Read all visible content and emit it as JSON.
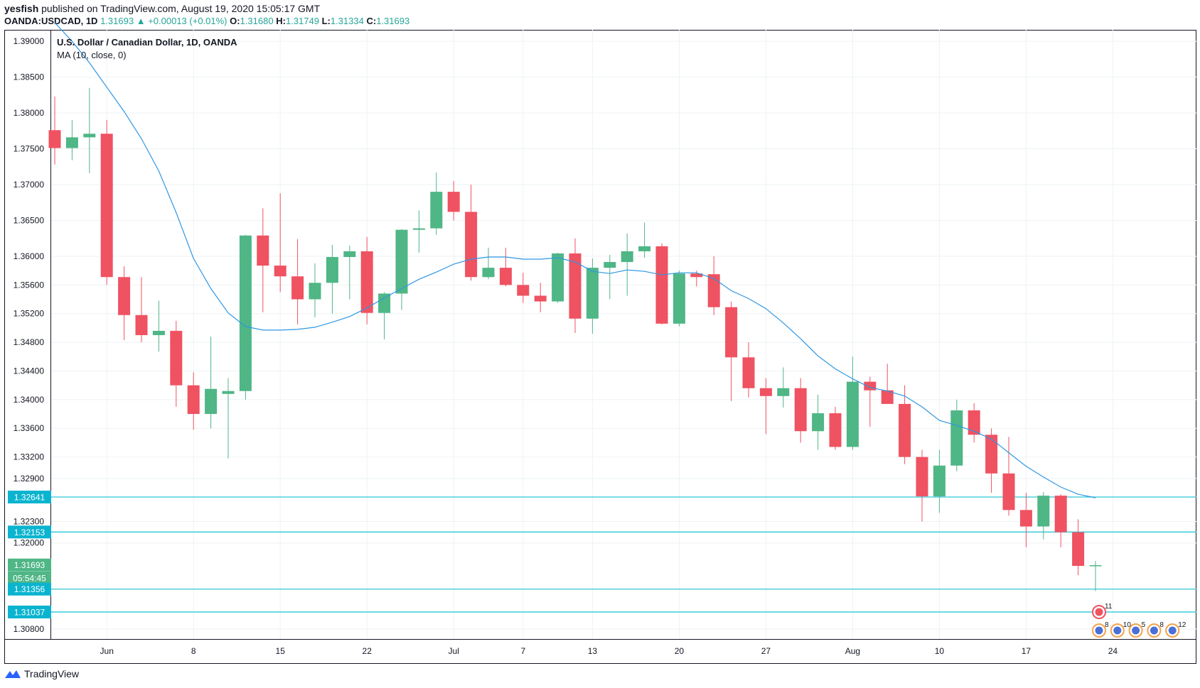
{
  "header": {
    "author": "yesfish",
    "published": "published on TradingView.com, August 19, 2020 15:05:17 GMT",
    "symbol": "OANDA:USDCAD, 1D",
    "last": "1.31693",
    "change": "+0.00013 (+0.01%)",
    "o_label": "O:",
    "o_value": "1.31680",
    "h_label": "H:",
    "h_value": "1.31749",
    "l_label": "L:",
    "l_value": "1.31334",
    "c_label": "C:",
    "c_value": "1.31693"
  },
  "legend": {
    "title": "U.S. Dollar / Canadian Dollar, 1D, OANDA",
    "ma": "MA (10, close, 0)"
  },
  "footer": {
    "brand": "TradingView"
  },
  "colors": {
    "up": "#4fb686",
    "down": "#ef5261",
    "ma": "#2e97e3",
    "hline": "#2ec7d6",
    "grid": "#eef2f5",
    "axis": "#131722",
    "tag": "#0ab4cf",
    "pricetag": "#4fb686"
  },
  "chart_data": {
    "type": "candlestick",
    "title": "U.S. Dollar / Canadian Dollar, 1D, OANDA",
    "ylim": [
      1.3066,
      1.3916
    ],
    "y_ticks": [
      "1.39000",
      "1.38500",
      "1.38000",
      "1.37500",
      "1.37000",
      "1.36500",
      "1.36000",
      "1.35600",
      "1.35200",
      "1.34800",
      "1.34400",
      "1.34000",
      "1.33600",
      "1.33200",
      "1.32900",
      "1.32300",
      "1.32000",
      "1.30800"
    ],
    "x_ticks": [
      {
        "i": 3,
        "label": "Jun"
      },
      {
        "i": 8,
        "label": "8"
      },
      {
        "i": 13,
        "label": "15"
      },
      {
        "i": 18,
        "label": "22"
      },
      {
        "i": 23,
        "label": "Jul"
      },
      {
        "i": 27,
        "label": "7"
      },
      {
        "i": 31,
        "label": "13"
      },
      {
        "i": 36,
        "label": "20"
      },
      {
        "i": 41,
        "label": "27"
      },
      {
        "i": 46,
        "label": "Aug"
      },
      {
        "i": 51,
        "label": "10"
      },
      {
        "i": 56,
        "label": "17"
      },
      {
        "i": 61,
        "label": "24"
      }
    ],
    "candles": [
      [
        1.3776,
        1.3823,
        1.3728,
        1.3751
      ],
      [
        1.3751,
        1.379,
        1.3734,
        1.3766
      ],
      [
        1.3766,
        1.3835,
        1.3716,
        1.3771
      ],
      [
        1.3771,
        1.379,
        1.356,
        1.3571
      ],
      [
        1.3571,
        1.3586,
        1.3483,
        1.3518
      ],
      [
        1.3518,
        1.3571,
        1.348,
        1.349
      ],
      [
        1.349,
        1.3538,
        1.3467,
        1.3496
      ],
      [
        1.3496,
        1.351,
        1.339,
        1.342
      ],
      [
        1.342,
        1.3438,
        1.3358,
        1.338
      ],
      [
        1.338,
        1.3488,
        1.336,
        1.3415
      ],
      [
        1.3408,
        1.343,
        1.3318,
        1.3412
      ],
      [
        1.3412,
        1.363,
        1.34,
        1.3629
      ],
      [
        1.3629,
        1.3667,
        1.3522,
        1.3587
      ],
      [
        1.3587,
        1.3688,
        1.355,
        1.3572
      ],
      [
        1.3572,
        1.3624,
        1.3505,
        1.354
      ],
      [
        1.354,
        1.359,
        1.3515,
        1.3563
      ],
      [
        1.3563,
        1.3616,
        1.352,
        1.3599
      ],
      [
        1.3599,
        1.3615,
        1.354,
        1.3607
      ],
      [
        1.3607,
        1.3627,
        1.3505,
        1.3521
      ],
      [
        1.3521,
        1.355,
        1.3484,
        1.3548
      ],
      [
        1.3548,
        1.3638,
        1.3525,
        1.3637
      ],
      [
        1.3637,
        1.3664,
        1.3605,
        1.3639
      ],
      [
        1.3639,
        1.3717,
        1.363,
        1.369
      ],
      [
        1.369,
        1.3705,
        1.365,
        1.3662
      ],
      [
        1.3662,
        1.37,
        1.3566,
        1.3571
      ],
      [
        1.3571,
        1.3612,
        1.3568,
        1.3584
      ],
      [
        1.3584,
        1.3612,
        1.3558,
        1.356
      ],
      [
        1.356,
        1.3577,
        1.3535,
        1.3545
      ],
      [
        1.3545,
        1.3563,
        1.3522,
        1.3537
      ],
      [
        1.3537,
        1.3605,
        1.3535,
        1.3604
      ],
      [
        1.3604,
        1.3625,
        1.3493,
        1.3513
      ],
      [
        1.3513,
        1.3597,
        1.3492,
        1.3584
      ],
      [
        1.3584,
        1.3602,
        1.354,
        1.3592
      ],
      [
        1.3592,
        1.3632,
        1.3545,
        1.3607
      ],
      [
        1.3607,
        1.3647,
        1.3598,
        1.3614
      ],
      [
        1.3614,
        1.3618,
        1.3505,
        1.3506
      ],
      [
        1.3506,
        1.358,
        1.3502,
        1.3576
      ],
      [
        1.3576,
        1.358,
        1.3558,
        1.3571
      ],
      [
        1.3575,
        1.36,
        1.3518,
        1.3529
      ],
      [
        1.3529,
        1.3537,
        1.3398,
        1.3459
      ],
      [
        1.3459,
        1.348,
        1.3403,
        1.3416
      ],
      [
        1.3416,
        1.343,
        1.3352,
        1.3405
      ],
      [
        1.3405,
        1.3445,
        1.3389,
        1.3416
      ],
      [
        1.3416,
        1.343,
        1.334,
        1.3356
      ],
      [
        1.3356,
        1.3407,
        1.333,
        1.3381
      ],
      [
        1.3381,
        1.339,
        1.333,
        1.3334
      ],
      [
        1.3334,
        1.346,
        1.333,
        1.3425
      ],
      [
        1.3425,
        1.3432,
        1.3362,
        1.3413
      ],
      [
        1.3413,
        1.345,
        1.3398,
        1.3394
      ],
      [
        1.3394,
        1.342,
        1.331,
        1.332
      ],
      [
        1.332,
        1.333,
        1.323,
        1.3265
      ],
      [
        1.3265,
        1.333,
        1.3242,
        1.3308
      ],
      [
        1.3308,
        1.34,
        1.33,
        1.3385
      ],
      [
        1.3385,
        1.3395,
        1.334,
        1.3351
      ],
      [
        1.3351,
        1.336,
        1.327,
        1.3297
      ],
      [
        1.3297,
        1.3348,
        1.3238,
        1.3246
      ],
      [
        1.3246,
        1.327,
        1.3194,
        1.3223
      ],
      [
        1.3223,
        1.3271,
        1.3205,
        1.3266
      ],
      [
        1.3266,
        1.3268,
        1.3194,
        1.3215
      ],
      [
        1.3215,
        1.3233,
        1.3155,
        1.3168
      ],
      [
        1.3168,
        1.3175,
        1.3133,
        1.3169
      ]
    ],
    "ma": [
      [
        0,
        1.3926
      ],
      [
        1,
        1.39
      ],
      [
        2,
        1.387
      ],
      [
        3,
        1.3836
      ],
      [
        4,
        1.3802
      ],
      [
        5,
        1.3764
      ],
      [
        6,
        1.3719
      ],
      [
        7,
        1.3661
      ],
      [
        8,
        1.3597
      ],
      [
        9,
        1.3555
      ],
      [
        10,
        1.3521
      ],
      [
        11,
        1.3502
      ],
      [
        12,
        1.3497
      ],
      [
        13,
        1.3497
      ],
      [
        14,
        1.3498
      ],
      [
        15,
        1.3501
      ],
      [
        16,
        1.3508
      ],
      [
        17,
        1.3516
      ],
      [
        18,
        1.3528
      ],
      [
        19,
        1.3542
      ],
      [
        20,
        1.3555
      ],
      [
        21,
        1.3568
      ],
      [
        22,
        1.3578
      ],
      [
        23,
        1.3589
      ],
      [
        24,
        1.3596
      ],
      [
        25,
        1.3599
      ],
      [
        26,
        1.3599
      ],
      [
        27,
        1.3596
      ],
      [
        28,
        1.3596
      ],
      [
        29,
        1.3598
      ],
      [
        30,
        1.3592
      ],
      [
        31,
        1.3579
      ],
      [
        32,
        1.3576
      ],
      [
        33,
        1.3581
      ],
      [
        34,
        1.3579
      ],
      [
        35,
        1.3574
      ],
      [
        36,
        1.3577
      ],
      [
        37,
        1.3577
      ],
      [
        38,
        1.3569
      ],
      [
        39,
        1.3552
      ],
      [
        40,
        1.3541
      ],
      [
        41,
        1.3527
      ],
      [
        42,
        1.3507
      ],
      [
        43,
        1.3485
      ],
      [
        44,
        1.3461
      ],
      [
        45,
        1.3443
      ],
      [
        46,
        1.3429
      ],
      [
        47,
        1.3417
      ],
      [
        48,
        1.3412
      ],
      [
        49,
        1.3405
      ],
      [
        50,
        1.339
      ],
      [
        51,
        1.3371
      ],
      [
        52,
        1.3364
      ],
      [
        53,
        1.3356
      ],
      [
        54,
        1.3345
      ],
      [
        55,
        1.3326
      ],
      [
        56,
        1.3307
      ],
      [
        57,
        1.3292
      ],
      [
        58,
        1.3278
      ],
      [
        59,
        1.3268
      ],
      [
        60,
        1.3263
      ]
    ],
    "hlines": [
      1.32641,
      1.32153,
      1.31356,
      1.31037
    ],
    "price_tags": [
      {
        "value": 1.32641,
        "text": "1.32641",
        "kind": "line"
      },
      {
        "value": 1.32153,
        "text": "1.32153",
        "kind": "line"
      },
      {
        "value": 1.31693,
        "text": "1.31693",
        "kind": "price"
      },
      {
        "value": 1.31512,
        "text": "05:54:45",
        "kind": "timer"
      },
      {
        "value": 1.31356,
        "text": "1.31356",
        "kind": "line"
      },
      {
        "value": 1.31037,
        "text": "1.31037",
        "kind": "line"
      }
    ],
    "events": [
      {
        "i": 59.4,
        "text": "11",
        "row": 0,
        "flag": "ca"
      },
      {
        "i": 59.4,
        "text": "8",
        "row": 1,
        "flag": "us"
      },
      {
        "i": 60.4,
        "text": "10",
        "row": 1,
        "flag": "us"
      },
      {
        "i": 61.4,
        "text": "5",
        "row": 1,
        "flag": "us"
      },
      {
        "i": 62.4,
        "text": "8",
        "row": 1,
        "flag": "us"
      },
      {
        "i": 63.4,
        "text": "12",
        "row": 1,
        "flag": "us"
      }
    ]
  }
}
